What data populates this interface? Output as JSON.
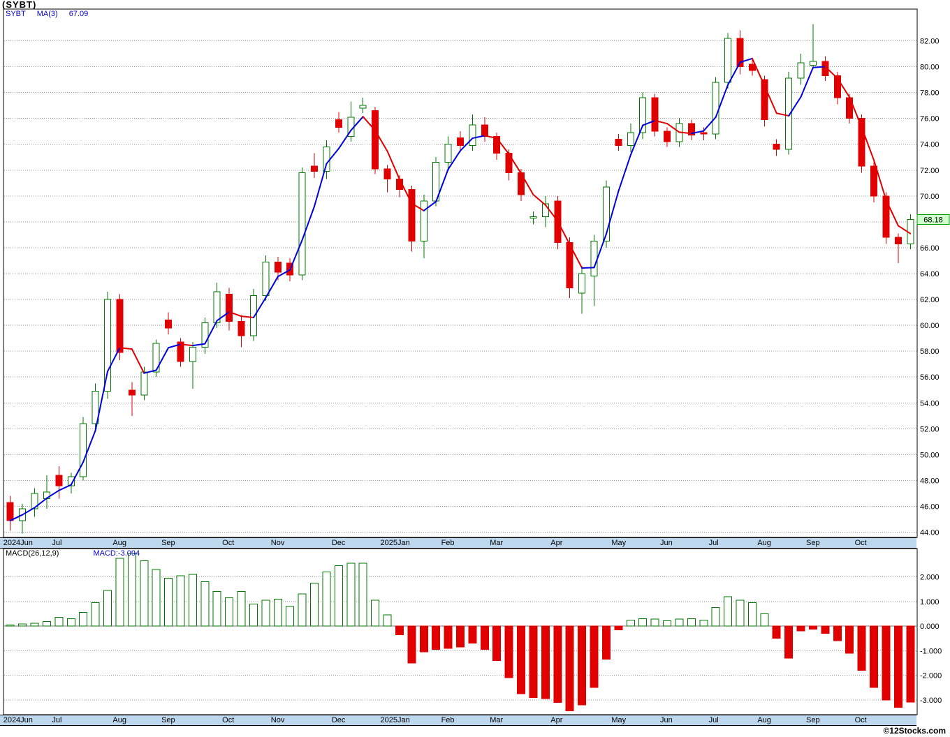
{
  "copyright": "©12Stocks.com",
  "colors": {
    "up": "#007a00",
    "down": "#e00000",
    "ma_up": "#0000dd",
    "ma_down": "#e00000",
    "grid": "#999999",
    "zero_line": "#777777",
    "band": "#bdd7ee",
    "legend_text": "#0000cc",
    "tag_bg": "#ccffcc",
    "tag_border": "#009900"
  },
  "chart_data": [
    {
      "type": "candlestick",
      "title": "(SYBT)",
      "legend": {
        "symbol": "SYBT",
        "ma_label": "MA(3)",
        "ma_value": "67.09"
      },
      "last_price_label": "68.18",
      "last_close": 68.18,
      "ma_period": 3,
      "ylim": [
        43.6,
        84.4
      ],
      "grid": true,
      "y_tick_values": [
        82,
        80,
        78,
        76,
        74,
        72,
        70,
        68,
        66,
        64,
        62,
        60,
        58,
        56,
        54,
        52,
        50,
        48,
        46,
        44
      ],
      "y_tick_labels": [
        "82.00",
        "80.00",
        "78.00",
        "76.00",
        "74.00",
        "72.00",
        "70.00",
        "68.00",
        "66.00",
        "64.00",
        "62.00",
        "60.00",
        "58.00",
        "56.00",
        "54.00",
        "52.00",
        "50.00",
        "48.00",
        "46.00",
        "44.00"
      ],
      "months": [
        {
          "l": "2024Jun",
          "i": 0
        },
        {
          "l": "Jul",
          "i": 4
        },
        {
          "l": "Aug",
          "i": 9
        },
        {
          "l": "Sep",
          "i": 13
        },
        {
          "l": "Oct",
          "i": 18
        },
        {
          "l": "Nov",
          "i": 22
        },
        {
          "l": "Dec",
          "i": 27
        },
        {
          "l": "2025Jan",
          "i": 31
        },
        {
          "l": "Feb",
          "i": 36
        },
        {
          "l": "Mar",
          "i": 40
        },
        {
          "l": "Apr",
          "i": 45
        },
        {
          "l": "May",
          "i": 50
        },
        {
          "l": "Jun",
          "i": 54
        },
        {
          "l": "Jul",
          "i": 58
        },
        {
          "l": "Aug",
          "i": 62
        },
        {
          "l": "Sep",
          "i": 66
        },
        {
          "l": "Oct",
          "i": 70
        }
      ],
      "candle_format": [
        "open",
        "high",
        "low",
        "close"
      ],
      "candles": [
        [
          46.3,
          46.8,
          44.1,
          44.9
        ],
        [
          44.9,
          46.2,
          43.9,
          45.8
        ],
        [
          45.8,
          47.4,
          45.2,
          47.0
        ],
        [
          46.6,
          48.4,
          45.8,
          47.1
        ],
        [
          48.4,
          49.1,
          46.6,
          47.6
        ],
        [
          47.6,
          48.6,
          47.0,
          48.3
        ],
        [
          48.3,
          52.9,
          48.0,
          52.4
        ],
        [
          52.4,
          55.5,
          52.0,
          54.9
        ],
        [
          54.9,
          62.6,
          54.3,
          62.0
        ],
        [
          62.0,
          62.4,
          57.3,
          57.9
        ],
        [
          55.0,
          55.6,
          53.0,
          54.6
        ],
        [
          54.6,
          56.8,
          54.2,
          56.4
        ],
        [
          56.4,
          58.9,
          56.0,
          58.6
        ],
        [
          60.4,
          61.0,
          59.3,
          59.8
        ],
        [
          58.7,
          59.0,
          56.8,
          57.2
        ],
        [
          57.2,
          58.7,
          55.1,
          58.3
        ],
        [
          58.3,
          60.6,
          57.8,
          60.2
        ],
        [
          60.2,
          63.3,
          59.8,
          62.6
        ],
        [
          62.4,
          62.9,
          59.6,
          60.3
        ],
        [
          60.3,
          60.8,
          58.3,
          59.2
        ],
        [
          59.2,
          62.8,
          58.8,
          62.3
        ],
        [
          62.3,
          65.4,
          61.9,
          64.9
        ],
        [
          64.9,
          65.3,
          63.5,
          64.1
        ],
        [
          64.8,
          65.2,
          63.4,
          63.9
        ],
        [
          63.9,
          72.2,
          63.5,
          71.8
        ],
        [
          72.3,
          73.3,
          71.4,
          71.9
        ],
        [
          71.9,
          74.3,
          71.3,
          73.8
        ],
        [
          75.9,
          76.5,
          74.9,
          75.3
        ],
        [
          74.6,
          77.3,
          74.2,
          76.1
        ],
        [
          76.8,
          77.6,
          76.4,
          77.0
        ],
        [
          76.6,
          76.9,
          71.7,
          72.1
        ],
        [
          72.1,
          72.4,
          70.3,
          71.3
        ],
        [
          71.3,
          71.6,
          69.9,
          70.5
        ],
        [
          70.5,
          70.8,
          65.7,
          66.5
        ],
        [
          66.5,
          70.1,
          65.2,
          69.6
        ],
        [
          69.6,
          73.0,
          69.2,
          72.6
        ],
        [
          72.6,
          74.6,
          72.1,
          74.0
        ],
        [
          74.5,
          75.0,
          73.4,
          73.9
        ],
        [
          73.9,
          76.3,
          73.5,
          75.5
        ],
        [
          75.5,
          76.1,
          74.2,
          74.6
        ],
        [
          74.6,
          74.9,
          72.8,
          73.3
        ],
        [
          73.3,
          73.6,
          71.2,
          71.8
        ],
        [
          71.8,
          72.1,
          69.6,
          70.1
        ],
        [
          68.3,
          68.8,
          67.8,
          68.4
        ],
        [
          68.4,
          70.0,
          67.6,
          69.4
        ],
        [
          69.6,
          70.0,
          65.9,
          66.4
        ],
        [
          66.4,
          66.8,
          62.1,
          62.9
        ],
        [
          62.5,
          64.6,
          60.9,
          64.0
        ],
        [
          63.8,
          67.0,
          61.5,
          66.5
        ],
        [
          66.5,
          71.2,
          66.0,
          70.7
        ],
        [
          74.4,
          74.8,
          73.5,
          73.9
        ],
        [
          73.9,
          75.6,
          73.4,
          74.9
        ],
        [
          74.9,
          78.0,
          74.4,
          77.6
        ],
        [
          77.6,
          77.9,
          74.6,
          75.0
        ],
        [
          75.0,
          75.3,
          73.8,
          74.2
        ],
        [
          74.2,
          76.0,
          73.8,
          75.6
        ],
        [
          75.6,
          75.9,
          74.3,
          74.7
        ],
        [
          74.9,
          75.3,
          74.3,
          74.8
        ],
        [
          74.8,
          79.2,
          74.4,
          78.8
        ],
        [
          78.8,
          82.6,
          78.3,
          82.2
        ],
        [
          82.2,
          82.8,
          79.4,
          80.0
        ],
        [
          80.2,
          80.6,
          79.3,
          79.7
        ],
        [
          79.0,
          79.3,
          75.4,
          75.9
        ],
        [
          74.0,
          74.4,
          73.1,
          73.6
        ],
        [
          73.6,
          79.6,
          73.2,
          79.1
        ],
        [
          79.1,
          81.0,
          78.6,
          80.3
        ],
        [
          80.1,
          83.3,
          79.8,
          80.4
        ],
        [
          80.4,
          80.8,
          78.9,
          79.3
        ],
        [
          79.3,
          79.6,
          77.1,
          77.6
        ],
        [
          77.6,
          77.9,
          75.6,
          76.0
        ],
        [
          76.0,
          76.3,
          71.8,
          72.3
        ],
        [
          72.3,
          72.6,
          69.5,
          70.0
        ],
        [
          70.0,
          70.3,
          66.3,
          66.8
        ],
        [
          66.8,
          67.1,
          64.8,
          66.3
        ],
        [
          66.3,
          68.6,
          65.9,
          68.18
        ]
      ]
    },
    {
      "type": "bar",
      "label": "MACD(26,12,9)",
      "value_label": "MACD:-3.094",
      "last_value": -3.094,
      "ylim": [
        -3.6,
        3.15
      ],
      "grid": true,
      "y_tick_values": [
        2,
        1,
        0,
        -1,
        -2,
        -3
      ],
      "y_tick_labels": [
        "2.000",
        "1.000",
        "0.000",
        "-1.000",
        "-2.000",
        "-3.000"
      ],
      "values": [
        0.05,
        0.08,
        0.12,
        0.18,
        0.35,
        0.3,
        0.55,
        0.95,
        1.45,
        2.75,
        2.95,
        2.65,
        2.3,
        1.95,
        2.05,
        2.1,
        1.8,
        1.4,
        1.15,
        1.4,
        0.9,
        1.05,
        1.1,
        0.8,
        1.3,
        1.75,
        2.2,
        2.45,
        2.55,
        2.55,
        1.05,
        0.45,
        -0.35,
        -1.5,
        -1.05,
        -0.95,
        -0.9,
        -0.85,
        -0.7,
        -0.95,
        -1.4,
        -2.1,
        -2.75,
        -2.9,
        -2.95,
        -3.1,
        -3.45,
        -3.2,
        -2.5,
        -1.35,
        -0.15,
        0.25,
        0.3,
        0.28,
        0.22,
        0.28,
        0.3,
        0.25,
        0.75,
        1.2,
        1.05,
        0.95,
        0.5,
        -0.5,
        -1.3,
        -0.2,
        -0.12,
        -0.3,
        -0.6,
        -1.1,
        -1.8,
        -2.5,
        -3.0,
        -3.3,
        -3.094
      ]
    }
  ]
}
